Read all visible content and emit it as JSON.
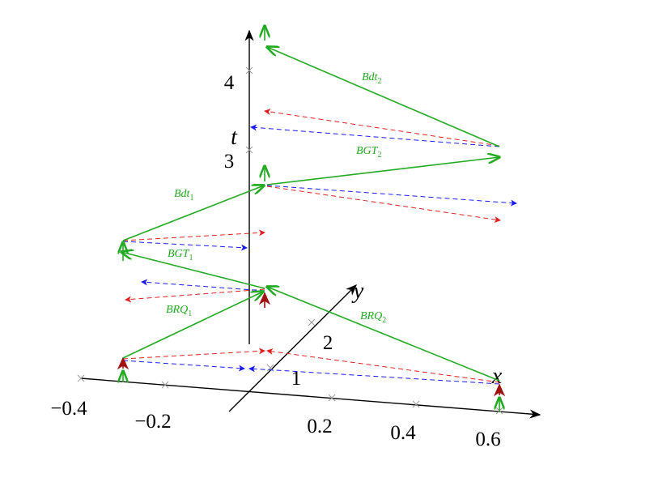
{
  "axes": {
    "x": {
      "label": "x",
      "ticks": [
        "−0.4",
        "−0.2",
        "0.2",
        "0.4",
        "0.6"
      ]
    },
    "y": {
      "label": "y",
      "ticks": [
        "1",
        "2"
      ]
    },
    "t": {
      "label": "t",
      "ticks": [
        "3",
        "4"
      ]
    }
  },
  "edges": [
    {
      "label": "BRQ",
      "subscript": "1"
    },
    {
      "label": "BRQ",
      "subscript": "2"
    },
    {
      "label": "BGT",
      "subscript": "1"
    },
    {
      "label": "Bdt",
      "subscript": "1"
    },
    {
      "label": "BGT",
      "subscript": "2"
    },
    {
      "label": "Bdt",
      "subscript": "2"
    }
  ]
}
